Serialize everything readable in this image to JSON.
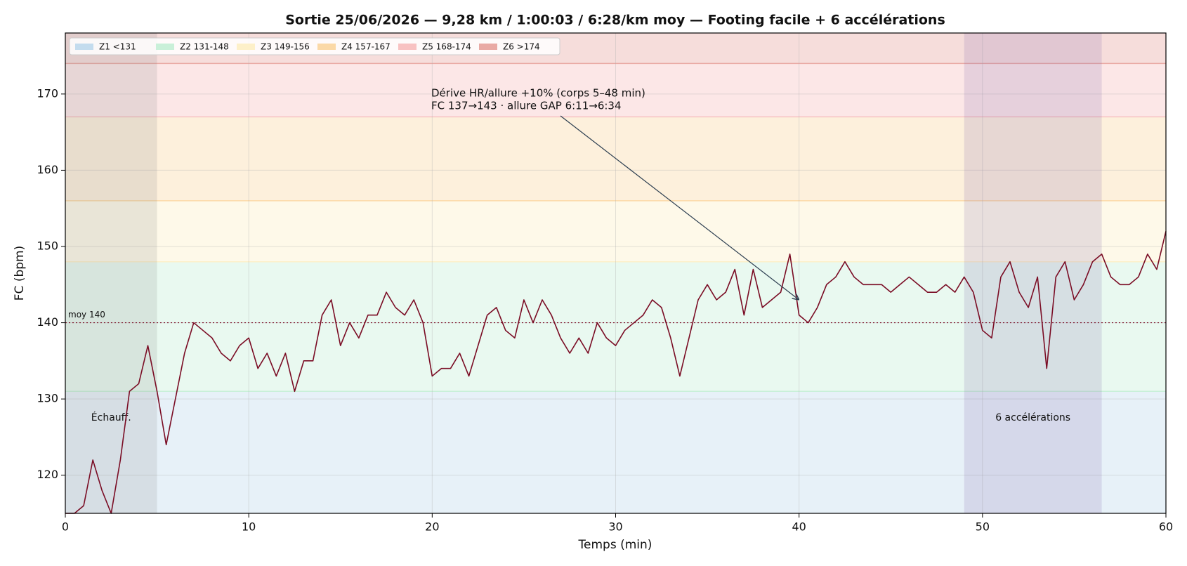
{
  "chart_data": {
    "type": "line",
    "title": "Sortie 25/06/2026 — 9,28 km / 1:00:03 / 6:28/km moy — Footing facile + 6 accélérations",
    "x_label": "Temps (min)",
    "y_label": "FC (bpm)",
    "xlim": [
      0,
      60
    ],
    "ylim": [
      115,
      178
    ],
    "xticks": [
      0,
      10,
      20,
      30,
      40,
      50,
      60
    ],
    "yticks": [
      120,
      130,
      140,
      150,
      160,
      170
    ],
    "grid": true,
    "legend": "upper left",
    "color": "#7a0c24",
    "x": [
      0,
      0.5,
      1,
      1.5,
      2,
      2.5,
      3,
      3.5,
      4,
      4.5,
      5,
      5.5,
      6,
      6.5,
      7,
      7.5,
      8,
      8.5,
      9,
      9.5,
      10,
      10.5,
      11,
      11.5,
      12,
      12.5,
      13,
      13.5,
      14,
      14.5,
      15,
      15.5,
      16,
      16.5,
      17,
      17.5,
      18,
      18.5,
      19,
      19.5,
      20,
      20.5,
      21,
      21.5,
      22,
      22.5,
      23,
      23.5,
      24,
      24.5,
      25,
      25.5,
      26,
      26.5,
      27,
      27.5,
      28,
      28.5,
      29,
      29.5,
      30,
      30.5,
      31,
      31.5,
      32,
      32.5,
      33,
      33.5,
      34,
      34.5,
      35,
      35.5,
      36,
      36.5,
      37,
      37.5,
      38,
      38.5,
      39,
      39.5,
      40,
      40.5,
      41,
      41.5,
      42,
      42.5,
      43,
      43.5,
      44,
      44.5,
      45,
      45.5,
      46,
      46.5,
      47,
      47.5,
      48,
      48.5,
      49,
      49.5,
      50,
      50.5,
      51,
      51.5,
      52,
      52.5,
      53,
      53.5,
      54,
      54.5,
      55,
      55.5,
      56,
      56.5,
      57,
      57.5,
      58,
      58.5,
      59,
      59.5,
      60
    ],
    "values": [
      115,
      115,
      116,
      122,
      118,
      115,
      122,
      131,
      132,
      137,
      131,
      124,
      130,
      136,
      140,
      139,
      138,
      136,
      135,
      137,
      138,
      134,
      136,
      133,
      136,
      131,
      135,
      135,
      141,
      143,
      137,
      140,
      138,
      141,
      141,
      144,
      142,
      141,
      143,
      140,
      133,
      134,
      134,
      136,
      133,
      137,
      141,
      142,
      139,
      138,
      143,
      140,
      143,
      141,
      138,
      136,
      138,
      136,
      140,
      138,
      137,
      139,
      140,
      141,
      143,
      142,
      138,
      133,
      138,
      143,
      145,
      143,
      144,
      147,
      141,
      147,
      142,
      143,
      144,
      149,
      141,
      140,
      142,
      145,
      146,
      148,
      146,
      145,
      145,
      145,
      144,
      145,
      146,
      145,
      144,
      144,
      145,
      144,
      146,
      144,
      139,
      138,
      146,
      148,
      144,
      142,
      146,
      134,
      146,
      148,
      143,
      145,
      148,
      149,
      146,
      145,
      145,
      146,
      149,
      147,
      152
    ],
    "zones": [
      {
        "label": "Z1 <131",
        "color": "#c4dcee"
      },
      {
        "label": "Z2 131-148",
        "color": "#c9f0d9"
      },
      {
        "label": "Z3 149-156",
        "color": "#fdf0c9"
      },
      {
        "label": "Z4 157-167",
        "color": "#fbd9a7"
      },
      {
        "label": "Z5 168-174",
        "color": "#f8c2c2"
      },
      {
        "label": "Z6 >174",
        "color": "#e9aaa5"
      }
    ],
    "zone_bounds": [
      131,
      148,
      156,
      167,
      174
    ],
    "mean": {
      "value": 140,
      "label": "moy 140"
    },
    "spans": [
      {
        "label": "Échauff.",
        "from": 0,
        "to": 5,
        "color": "#808080"
      },
      {
        "label": "6 accélérations",
        "from": 49,
        "to": 56.5,
        "color": "#7a5fa8"
      }
    ],
    "annotation": {
      "lines": [
        "Dérive HR/allure +10% (corps 5–48 min)",
        "FC 137→143 · allure GAP 6:11→6:34"
      ],
      "xy": [
        40,
        143
      ]
    }
  }
}
